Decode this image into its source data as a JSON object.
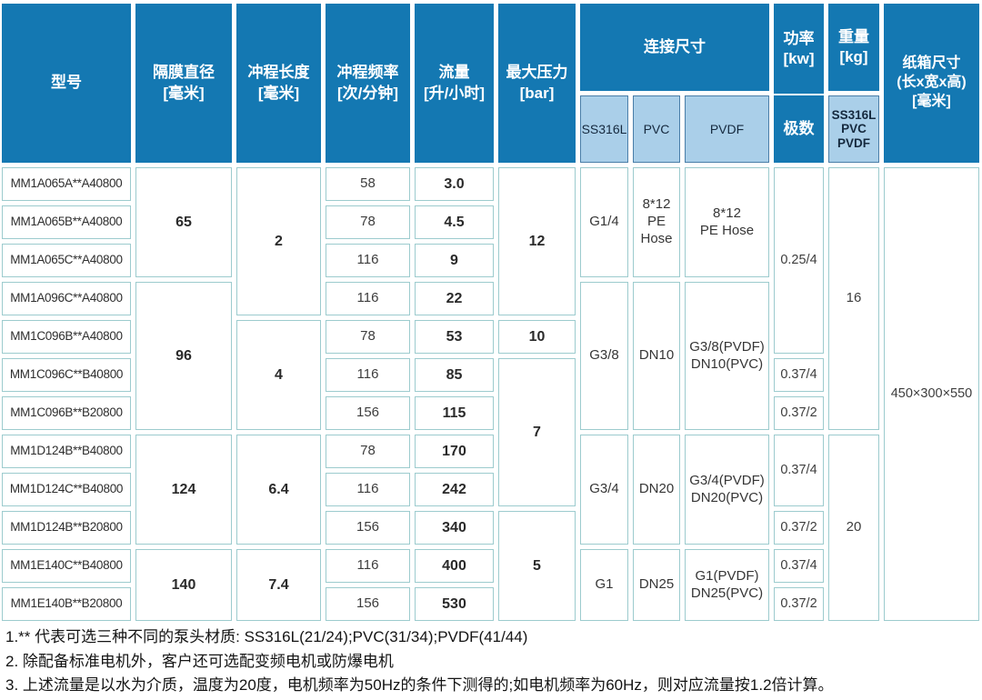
{
  "header": {
    "model": "型号",
    "diaphragm": "隔膜直径\n[毫米]",
    "stroke": "冲程长度\n[毫米]",
    "frequency": "冲程频率\n[次/分钟]",
    "flow": "流量\n[升/小时]",
    "pressure": "最大压力\n[bar]",
    "connection": "连接尺寸",
    "conn_ss316l": "SS316L",
    "conn_pvc": "PVC",
    "conn_pvdf": "PVDF",
    "power_top": "功率\n[kw]",
    "power_bottom": "极数",
    "weight": "重量\n[kg]",
    "weight_sub": "SS316L\nPVC\nPVDF",
    "carton": "纸箱尺寸\n(长x宽x高)\n[毫米]"
  },
  "columns": {
    "models": [
      "MM1A065A**A40800",
      "MM1A065B**A40800",
      "MM1A065C**A40800",
      "MM1A096C**A40800",
      "MM1C096B**A40800",
      "MM1C096C**B40800",
      "MM1C096B**B20800",
      "MM1D124B**B40800",
      "MM1D124C**B40800",
      "MM1D124B**B20800",
      "MM1E140C**B40800",
      "MM1E140B**B20800"
    ],
    "diaphragm": [
      "65",
      "96",
      "124",
      "140"
    ],
    "stroke": [
      "2",
      "4",
      "6.4",
      "7.4"
    ],
    "frequency": [
      "58",
      "78",
      "116",
      "116",
      "78",
      "116",
      "156",
      "78",
      "116",
      "156",
      "116",
      "156"
    ],
    "flow": [
      "3.0",
      "4.5",
      "9",
      "22",
      "53",
      "85",
      "115",
      "170",
      "242",
      "340",
      "400",
      "530"
    ],
    "pressure": [
      "12",
      "10",
      "7",
      "5"
    ],
    "ss316l": [
      "G1/4",
      "G3/8",
      "G3/4",
      "G1"
    ],
    "pvc": [
      "8*12\nPE\nHose",
      "DN10",
      "DN20",
      "DN25"
    ],
    "pvdf": [
      "8*12\nPE Hose",
      "G3/8(PVDF)\nDN10(PVC)",
      "G3/4(PVDF)\nDN20(PVC)",
      "G1(PVDF)\nDN25(PVC)"
    ],
    "power": [
      "0.25/4",
      "0.37/4",
      "0.37/2",
      "0.37/4",
      "0.37/2",
      "0.37/4",
      "0.37/2"
    ],
    "weight": [
      "16",
      "20"
    ],
    "carton": "450×300×550"
  },
  "notes": [
    "1.** 代表可选三种不同的泵头材质: SS316L(21/24);PVC(31/34);PVDF(41/44)",
    "2. 除配备标准电机外，客户还可选配变频电机或防爆电机",
    "3. 上述流量是以水为介质，温度为20度，电机频率为50Hz的条件下测得的;如电机频率为60Hz，则对应流量按1.2倍计算。"
  ],
  "colors": {
    "header_blue": "#1478b2",
    "subheader_blue": "#aacfe9",
    "cell_border": "#9ccbce"
  }
}
